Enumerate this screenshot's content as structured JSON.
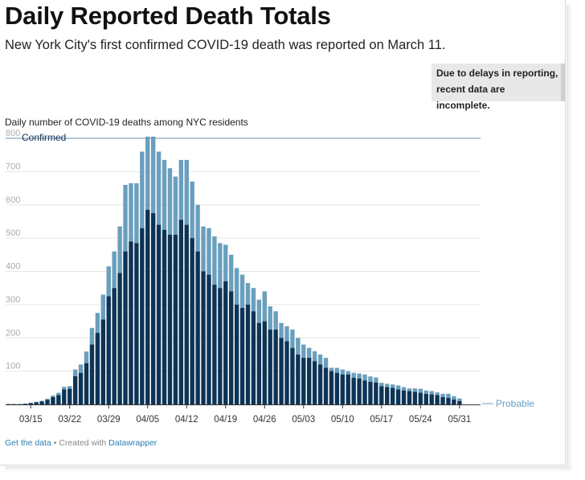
{
  "title": "Daily Reported Death Totals",
  "subtitle": "New York City's first confirmed COVID-19 death was reported on March 11.",
  "note": {
    "line1": "Due to delays in reporting,",
    "line2": "recent data are incomplete."
  },
  "footer": {
    "link1": "Get the data",
    "sep": " • Created with ",
    "link2": "Datawrapper"
  },
  "colors": {
    "confirmed": "#0d3456",
    "probable": "#6a9fbd",
    "grid": "#e6e6e6"
  },
  "chart_data": {
    "type": "bar",
    "stacked": true,
    "title": "Daily number of COVID-19 deaths among NYC residents",
    "ylim": [
      0,
      800
    ],
    "yticks": [
      100,
      200,
      300,
      400,
      500,
      600,
      700,
      800
    ],
    "xtick_labels": [
      "03/15",
      "03/22",
      "03/29",
      "04/05",
      "04/12",
      "04/19",
      "04/26",
      "05/03",
      "05/10",
      "05/17",
      "05/24",
      "05/31"
    ],
    "xtick_index": [
      4,
      11,
      18,
      25,
      32,
      39,
      46,
      53,
      60,
      67,
      74,
      81
    ],
    "series_labels": {
      "confirmed": "Confirmed",
      "probable": "Probable"
    },
    "confirmed": [
      1,
      1,
      1,
      2,
      4,
      6,
      9,
      14,
      22,
      28,
      45,
      47,
      85,
      95,
      124,
      180,
      215,
      255,
      325,
      350,
      395,
      460,
      490,
      485,
      530,
      585,
      575,
      540,
      525,
      510,
      510,
      555,
      540,
      500,
      460,
      400,
      390,
      360,
      350,
      370,
      340,
      300,
      290,
      300,
      280,
      245,
      250,
      225,
      225,
      200,
      190,
      170,
      150,
      140,
      140,
      130,
      120,
      110,
      100,
      95,
      90,
      90,
      80,
      78,
      72,
      68,
      66,
      55,
      52,
      50,
      45,
      42,
      40,
      38,
      35,
      32,
      30,
      28,
      22,
      20,
      15,
      10
    ],
    "probable": [
      0,
      0,
      0,
      0,
      1,
      2,
      2,
      3,
      5,
      7,
      8,
      8,
      20,
      25,
      35,
      50,
      60,
      75,
      90,
      110,
      140,
      200,
      175,
      180,
      230,
      220,
      230,
      220,
      210,
      200,
      175,
      180,
      195,
      170,
      140,
      135,
      140,
      145,
      135,
      110,
      110,
      110,
      100,
      65,
      70,
      70,
      90,
      70,
      55,
      45,
      45,
      55,
      50,
      40,
      30,
      30,
      30,
      30,
      10,
      15,
      15,
      10,
      15,
      15,
      18,
      16,
      15,
      10,
      10,
      10,
      12,
      10,
      8,
      10,
      12,
      10,
      10,
      8,
      10,
      12,
      10,
      8
    ]
  }
}
